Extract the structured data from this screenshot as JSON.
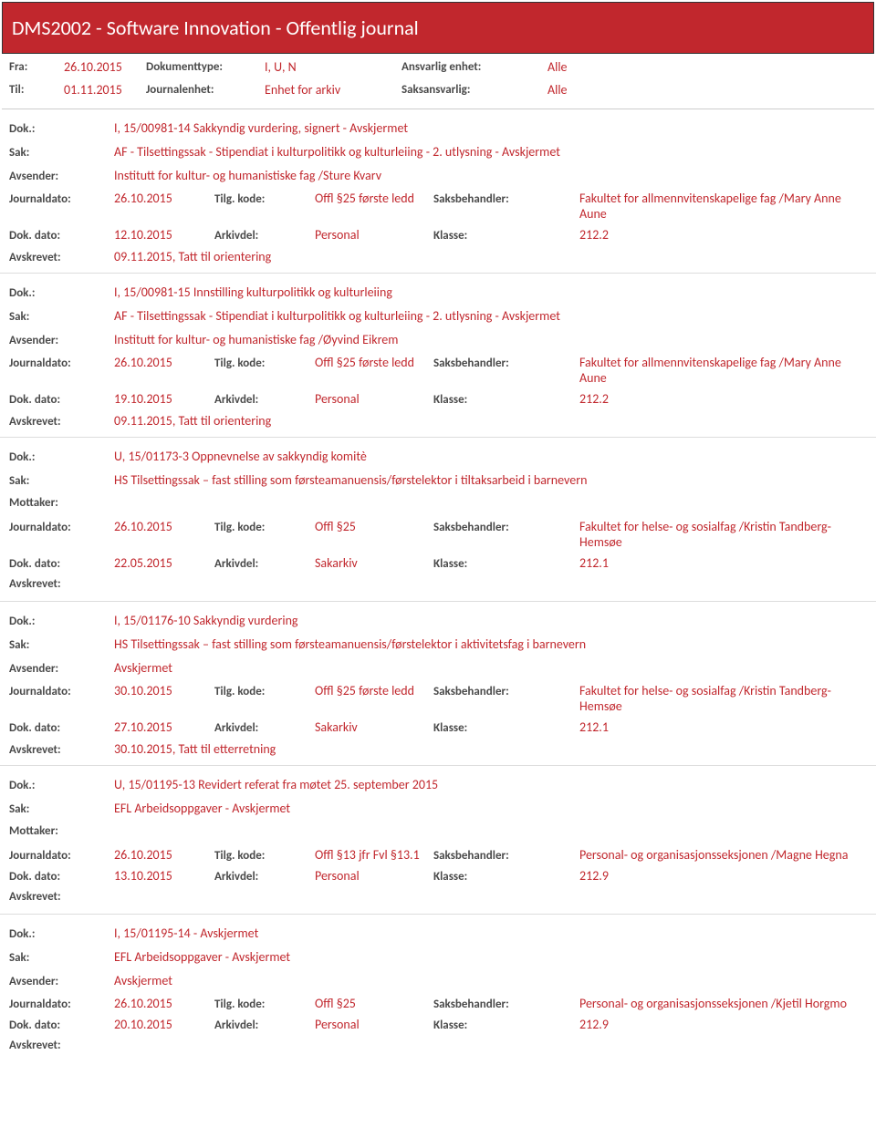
{
  "header": {
    "title": "DMS2002 - Software Innovation - Offentlig journal"
  },
  "meta": {
    "fra_lbl": "Fra:",
    "fra": "26.10.2015",
    "til_lbl": "Til:",
    "til": "01.11.2015",
    "doktype_lbl": "Dokumenttype:",
    "doktype": "I, U, N",
    "journalenhet_lbl": "Journalenhet:",
    "journalenhet": "Enhet for arkiv",
    "ansvarlig_lbl": "Ansvarlig enhet:",
    "ansvarlig": "Alle",
    "saks_lbl": "Saksansvarlig:",
    "saks": "Alle"
  },
  "labels": {
    "dok": "Dok.:",
    "sak": "Sak:",
    "avsender": "Avsender:",
    "mottaker": "Mottaker:",
    "journaldato": "Journaldato:",
    "dokdato": "Dok. dato:",
    "avskrevet": "Avskrevet:",
    "tilgkode": "Tilg. kode:",
    "arkivdel": "Arkivdel:",
    "saksbehandler": "Saksbehandler:",
    "klasse": "Klasse:"
  },
  "entries": [
    {
      "dok": "I, 15/00981-14 Sakkyndig vurdering, signert - Avskjermet",
      "sak": "AF - Tilsettingssak - Stipendiat i kulturpolitikk og kulturleiing - 2.  utlysning - Avskjermet",
      "party_lbl": "avsender",
      "party": "Institutt for kultur- og humanistiske fag /Sture Kvarv",
      "journaldato": "26.10.2015",
      "tilgkode": "Offl §25 første ledd",
      "saksbehandler": "Fakultet for allmennvitenskapelige fag /Mary Anne Aune",
      "dokdato": "12.10.2015",
      "arkivdel": "Personal",
      "klasse": "212.2",
      "avskrevet": "09.11.2015, Tatt til orientering"
    },
    {
      "dok": "I, 15/00981-15 Innstilling kulturpolitikk og kulturleiing",
      "sak": "AF - Tilsettingssak - Stipendiat i kulturpolitikk og kulturleiing - 2.  utlysning - Avskjermet",
      "party_lbl": "avsender",
      "party": "Institutt for kultur- og humanistiske fag /Øyvind Eikrem",
      "journaldato": "26.10.2015",
      "tilgkode": "Offl §25 første ledd",
      "saksbehandler": "Fakultet for allmennvitenskapelige fag /Mary Anne Aune",
      "dokdato": "19.10.2015",
      "arkivdel": "Personal",
      "klasse": "212.2",
      "avskrevet": "09.11.2015, Tatt til orientering"
    },
    {
      "dok": "U, 15/01173-3 Oppnevnelse av sakkyndig komitè",
      "sak": "HS Tilsettingssak – fast stilling som førsteamanuensis/førstelektor i tiltaksarbeid i barnevern",
      "party_lbl": "mottaker",
      "party": "",
      "journaldato": "26.10.2015",
      "tilgkode": "Offl §25",
      "saksbehandler": "Fakultet for helse- og sosialfag /Kristin Tandberg-Hemsøe",
      "dokdato": "22.05.2015",
      "arkivdel": "Sakarkiv",
      "klasse": "212.1",
      "avskrevet": ""
    },
    {
      "dok": "I, 15/01176-10 Sakkyndig vurdering",
      "sak": "HS Tilsettingssak – fast stilling som førsteamanuensis/førstelektor i aktivitetsfag i barnevern",
      "party_lbl": "avsender",
      "party": "Avskjermet",
      "journaldato": "30.10.2015",
      "tilgkode": "Offl §25 første ledd",
      "saksbehandler": "Fakultet for helse- og sosialfag /Kristin Tandberg-Hemsøe",
      "dokdato": "27.10.2015",
      "arkivdel": "Sakarkiv",
      "klasse": "212.1",
      "avskrevet": "30.10.2015, Tatt til etterretning"
    },
    {
      "dok": "U, 15/01195-13 Revidert referat fra møtet 25. september 2015",
      "sak": "EFL Arbeidsoppgaver - Avskjermet",
      "party_lbl": "mottaker",
      "party": "",
      "journaldato": "26.10.2015",
      "tilgkode": "Offl §13 jfr Fvl §13.1",
      "saksbehandler": "Personal- og organisasjonsseksjonen /Magne Hegna",
      "dokdato": "13.10.2015",
      "arkivdel": "Personal",
      "klasse": "212.9",
      "avskrevet": ""
    },
    {
      "dok": "I, 15/01195-14 - Avskjermet",
      "sak": "EFL Arbeidsoppgaver - Avskjermet",
      "party_lbl": "avsender",
      "party": "Avskjermet",
      "journaldato": "26.10.2015",
      "tilgkode": "Offl §25",
      "saksbehandler": "Personal- og organisasjonsseksjonen /Kjetil Horgmo",
      "dokdato": "20.10.2015",
      "arkivdel": "Personal",
      "klasse": "212.9",
      "avskrevet": ""
    }
  ],
  "colors": {
    "banner_bg": "#c1272d",
    "text_red": "#c1272d",
    "text_gray": "#4a4a4a",
    "border": "#cccccc"
  }
}
